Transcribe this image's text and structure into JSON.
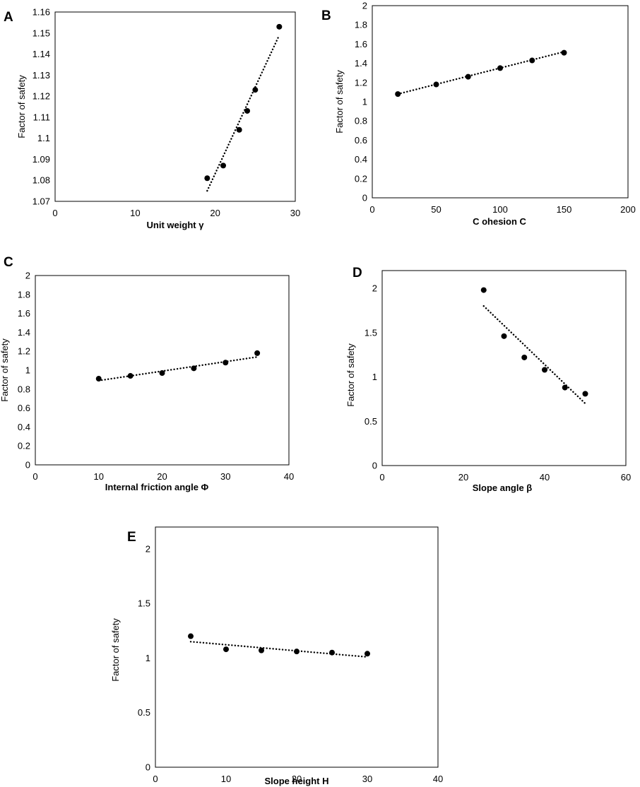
{
  "figure": {
    "panel_count": 5,
    "point_color": "#000000",
    "frame_color": "#000000",
    "trend_style": "dotted"
  },
  "chart_data": [
    {
      "id": "A",
      "type": "scatter",
      "letter": "A",
      "title": "",
      "xlabel": "Unit weight γ",
      "ylabel": "Factor of safety",
      "xlim": [
        0,
        30
      ],
      "ylim": [
        1.07,
        1.16
      ],
      "xticks": [
        0,
        10,
        20,
        30
      ],
      "yticks": [
        1.07,
        1.08,
        1.09,
        1.1,
        1.11,
        1.12,
        1.13,
        1.14,
        1.15,
        1.16
      ],
      "xtick_labels": [
        "0",
        "10",
        "20",
        "30"
      ],
      "ytick_labels": [
        "1.07",
        "1.08",
        "1.09",
        "1.1",
        "1.11",
        "1.12",
        "1.13",
        "1.14",
        "1.15",
        "1.16"
      ],
      "x": [
        19,
        21,
        23,
        24,
        25,
        28
      ],
      "y": [
        1.081,
        1.087,
        1.104,
        1.113,
        1.123,
        1.153
      ],
      "trendline": {
        "x": [
          19,
          28
        ],
        "y": [
          1.075,
          1.149
        ]
      }
    },
    {
      "id": "B",
      "type": "scatter",
      "letter": "B",
      "title": "",
      "xlabel": "C ohesion   C",
      "ylabel": "Factor of safety",
      "xlim": [
        0,
        200
      ],
      "ylim": [
        0,
        2
      ],
      "xticks": [
        0,
        50,
        100,
        150,
        200
      ],
      "yticks": [
        0,
        0.2,
        0.4,
        0.6,
        0.8,
        1,
        1.2,
        1.4,
        1.6,
        1.8,
        2
      ],
      "xtick_labels": [
        "0",
        "50",
        "100",
        "150",
        "200"
      ],
      "ytick_labels": [
        "0",
        "0.2",
        "0.4",
        "0.6",
        "0.8",
        "1",
        "1.2",
        "1.4",
        "1.6",
        "1.8",
        "2"
      ],
      "x": [
        20,
        50,
        75,
        100,
        125,
        150
      ],
      "y": [
        1.08,
        1.18,
        1.26,
        1.35,
        1.43,
        1.51
      ],
      "trendline": {
        "x": [
          20,
          150
        ],
        "y": [
          1.08,
          1.52
        ]
      }
    },
    {
      "id": "C",
      "type": "scatter",
      "letter": "C",
      "title": "",
      "xlabel": "Internal friction angle   Φ",
      "ylabel": "Factor of safety",
      "xlim": [
        0,
        40
      ],
      "ylim": [
        0,
        2
      ],
      "xticks": [
        0,
        10,
        20,
        30,
        40
      ],
      "yticks": [
        0,
        0.2,
        0.4,
        0.6,
        0.8,
        1,
        1.2,
        1.4,
        1.6,
        1.8,
        2
      ],
      "xtick_labels": [
        "0",
        "10",
        "20",
        "30",
        "40"
      ],
      "ytick_labels": [
        "0",
        "0.2",
        "0.4",
        "0.6",
        "0.8",
        "1",
        "1.2",
        "1.4",
        "1.6",
        "1.8",
        "2"
      ],
      "x": [
        10,
        15,
        20,
        25,
        30,
        35
      ],
      "y": [
        0.91,
        0.94,
        0.97,
        1.02,
        1.08,
        1.18
      ],
      "trendline": {
        "x": [
          10,
          35
        ],
        "y": [
          0.89,
          1.14
        ]
      }
    },
    {
      "id": "D",
      "type": "scatter",
      "letter": "D",
      "title": "",
      "xlabel": "Slope angle     β",
      "ylabel": "Factor of safety",
      "xlim": [
        0,
        60
      ],
      "ylim": [
        0,
        2.2
      ],
      "xticks": [
        0,
        20,
        40,
        60
      ],
      "yticks": [
        0,
        0.5,
        1,
        1.5,
        2
      ],
      "xtick_labels": [
        "0",
        "20",
        "40",
        "60"
      ],
      "ytick_labels": [
        "0",
        "0.5",
        "1",
        "1.5",
        "2"
      ],
      "x": [
        25,
        30,
        35,
        40,
        45,
        50
      ],
      "y": [
        1.98,
        1.46,
        1.22,
        1.08,
        0.88,
        0.81
      ],
      "trendline": {
        "x": [
          25,
          50
        ],
        "y": [
          1.8,
          0.7
        ]
      }
    },
    {
      "id": "E",
      "type": "scatter",
      "letter": "E",
      "title": "",
      "xlabel": "Slope height    H",
      "ylabel": "Factor of safety",
      "xlim": [
        0,
        40
      ],
      "ylim": [
        0,
        2.2
      ],
      "xticks": [
        0,
        10,
        20,
        30,
        40
      ],
      "yticks": [
        0,
        0.5,
        1,
        1.5,
        2
      ],
      "xtick_labels": [
        "0",
        "10",
        "20",
        "30",
        "40"
      ],
      "ytick_labels": [
        "0",
        "0.5",
        "1",
        "1.5",
        "2"
      ],
      "x": [
        5,
        10,
        15,
        20,
        25,
        30
      ],
      "y": [
        1.2,
        1.08,
        1.07,
        1.06,
        1.05,
        1.04
      ],
      "trendline": {
        "x": [
          5,
          30
        ],
        "y": [
          1.15,
          1.01
        ]
      }
    }
  ]
}
